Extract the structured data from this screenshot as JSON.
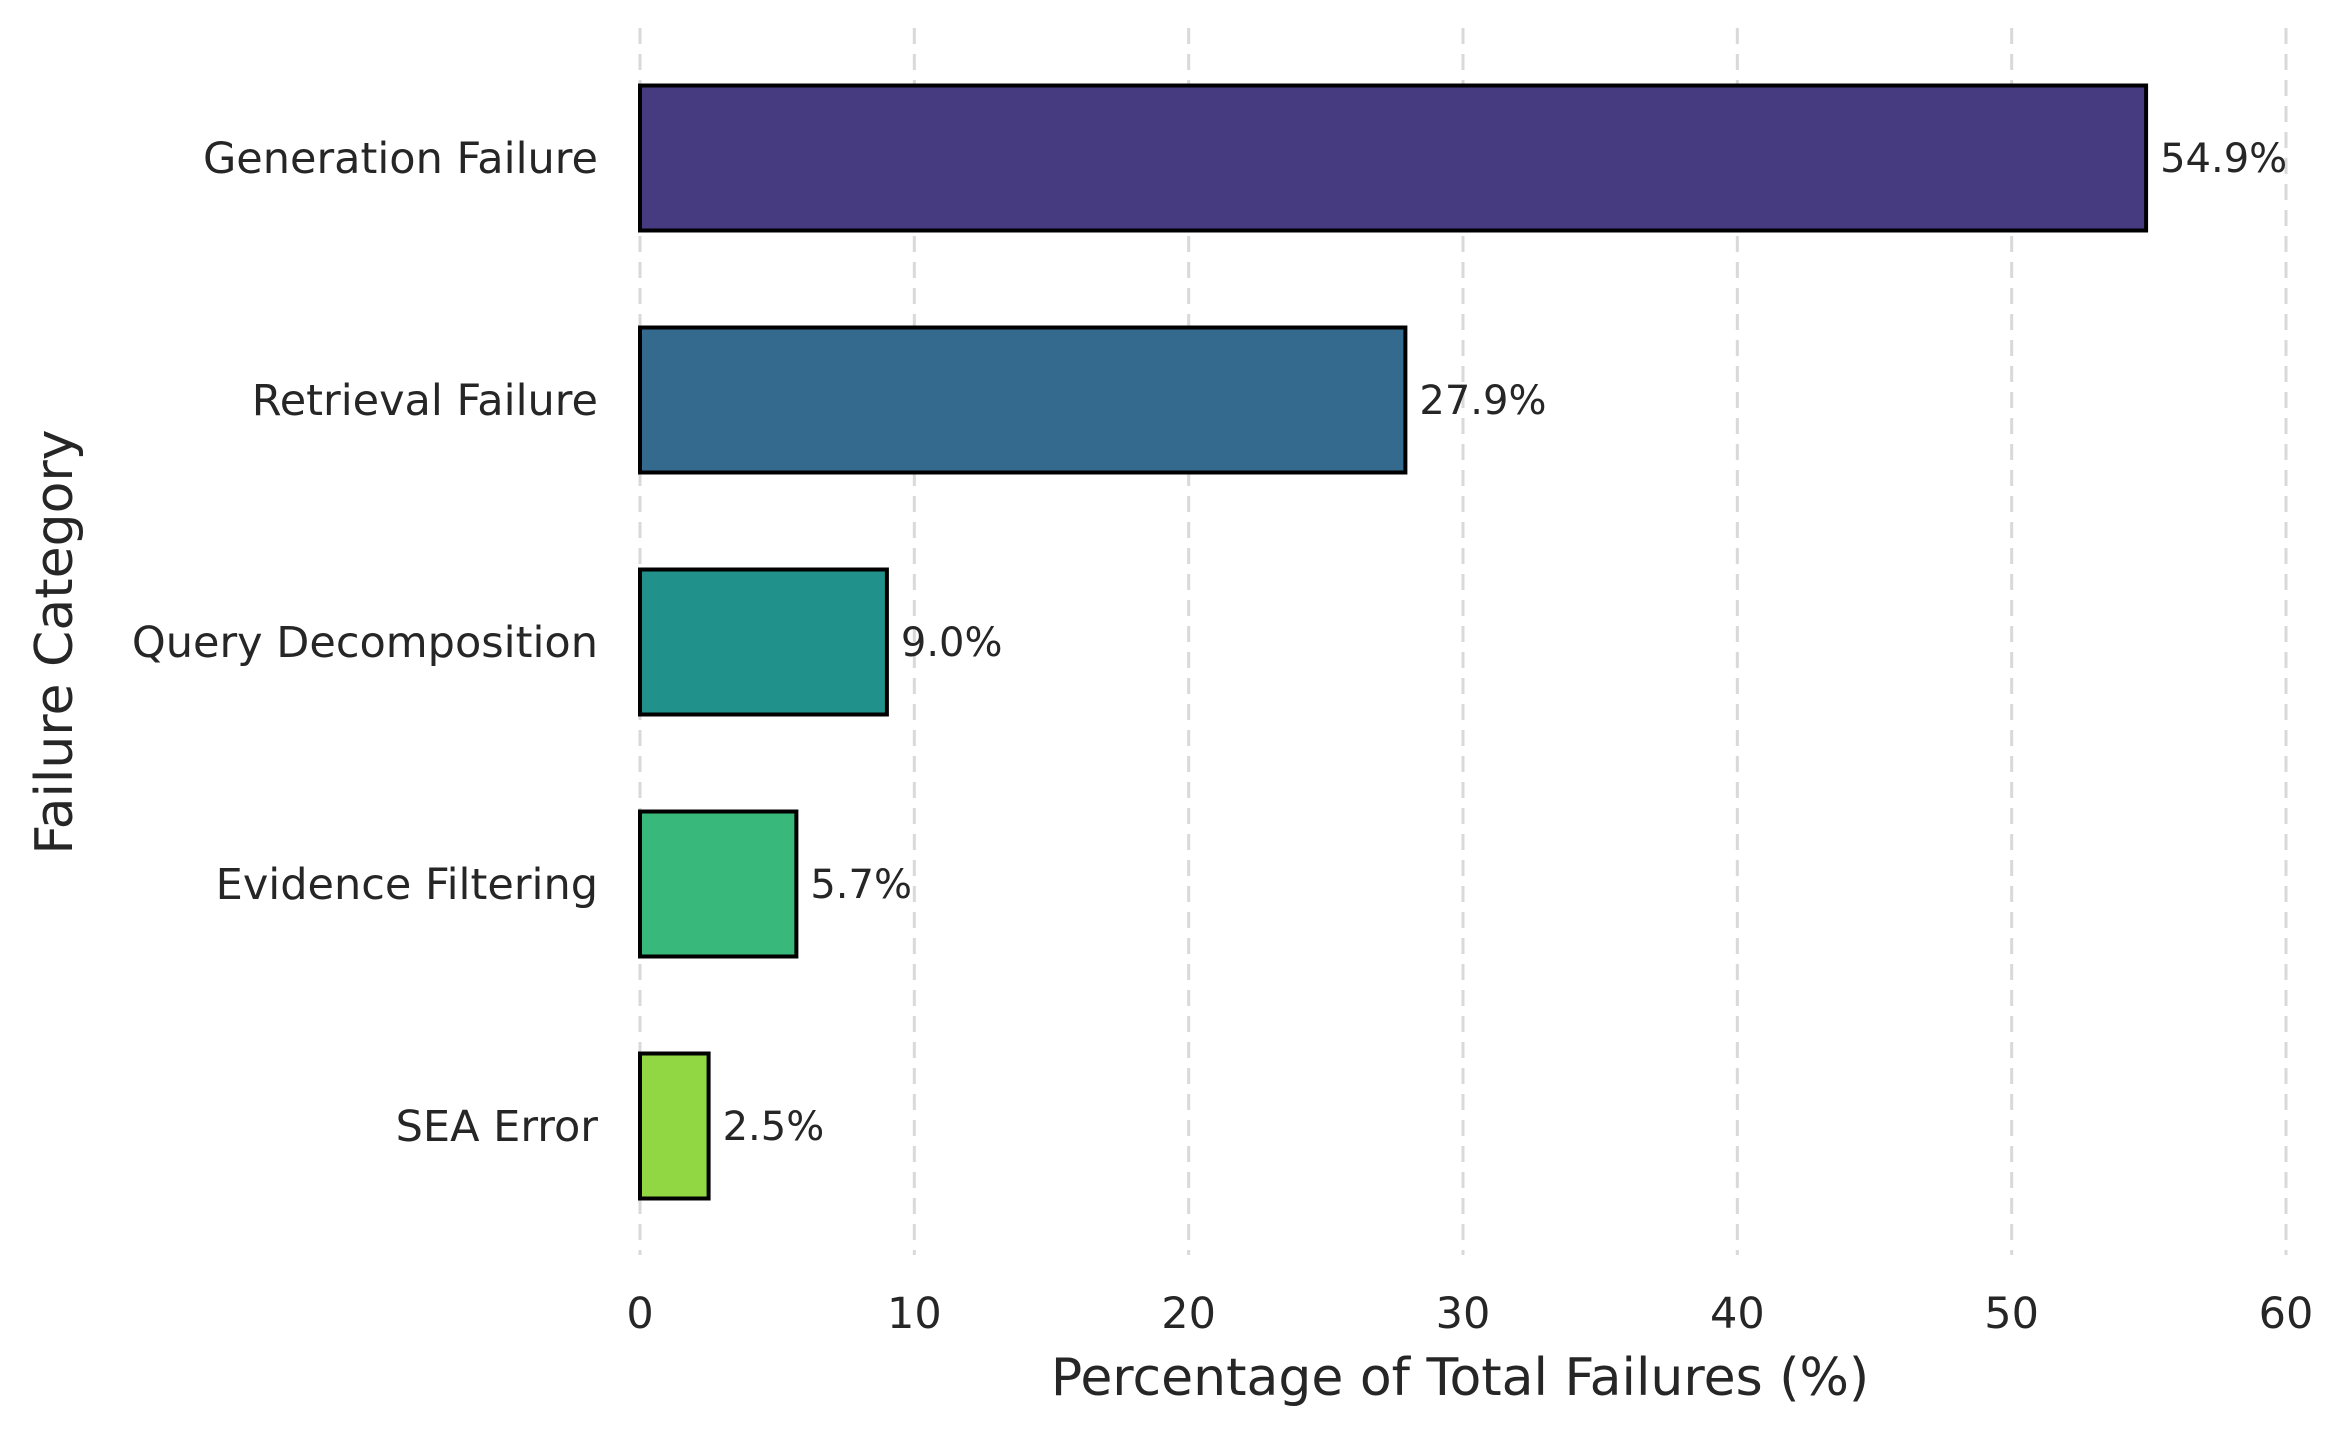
{
  "chart_data": {
    "type": "bar",
    "orientation": "horizontal",
    "xlabel": "Percentage of Total Failures (%)",
    "ylabel": "Failure Category",
    "xlim": [
      0,
      60
    ],
    "xticks": [
      0,
      10,
      20,
      30,
      40,
      50,
      60
    ],
    "grid": "vertical dashed",
    "categories": [
      "Generation Failure",
      "Retrieval Failure",
      "Query Decomposition",
      "Evidence Filtering",
      "SEA Error"
    ],
    "values": [
      54.9,
      27.9,
      9.0,
      5.7,
      2.5
    ],
    "value_labels": [
      "54.9%",
      "27.9%",
      "9.0%",
      "5.7%",
      "2.5%"
    ],
    "colors": [
      "#463a80",
      "#336a8e",
      "#21918c",
      "#38b87a",
      "#90d743"
    ]
  }
}
